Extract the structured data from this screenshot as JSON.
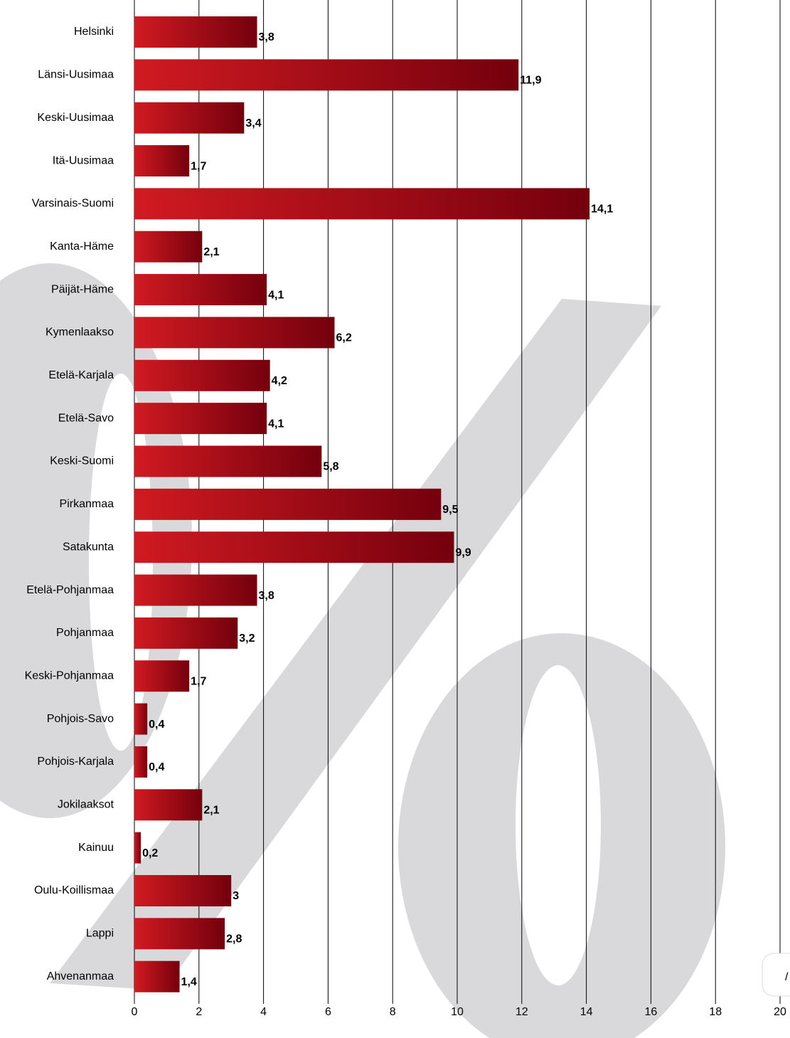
{
  "chart_data": {
    "type": "barh",
    "categories": [
      "Helsinki",
      "Länsi-Uusimaa",
      "Keski-Uusimaa",
      "Itä-Uusimaa",
      "Varsinais-Suomi",
      "Kanta-Häme",
      "Päijät-Häme",
      "Kymenlaakso",
      "Etelä-Karjala",
      "Etelä-Savo",
      "Keski-Suomi",
      "Pirkanmaa",
      "Satakunta",
      "Etelä-Pohjanmaa",
      "Pohjanmaa",
      "Keski-Pohjanmaa",
      "Pohjois-Savo",
      "Pohjois-Karjala",
      "Jokilaaksot",
      "Kainuu",
      "Oulu-Koillismaa",
      "Lappi",
      "Ahvenanmaa"
    ],
    "values": [
      3.8,
      11.9,
      3.4,
      1.7,
      14.1,
      2.1,
      4.1,
      6.2,
      4.2,
      4.1,
      5.8,
      9.5,
      9.9,
      3.8,
      3.2,
      1.7,
      0.4,
      0.4,
      2.1,
      0.2,
      3,
      2.8,
      1.4
    ],
    "value_labels": [
      "3,8",
      "11,9",
      "3,4",
      "1,7",
      "14,1",
      "2,1",
      "4,1",
      "6,2",
      "4,2",
      "4,1",
      "5,8",
      "9,5",
      "9,9",
      "3,8",
      "3,2",
      "1,7",
      "0,4",
      "0,4",
      "2,1",
      "0,2",
      "3",
      "2,8",
      "1,4"
    ],
    "colors": [
      "#d11a21",
      "#74000d"
    ],
    "xlim": [
      0,
      20
    ],
    "xticks": [
      0,
      2,
      4,
      6,
      8,
      10,
      12,
      14,
      16,
      18,
      20
    ],
    "grid": true,
    "annotation": "/"
  }
}
